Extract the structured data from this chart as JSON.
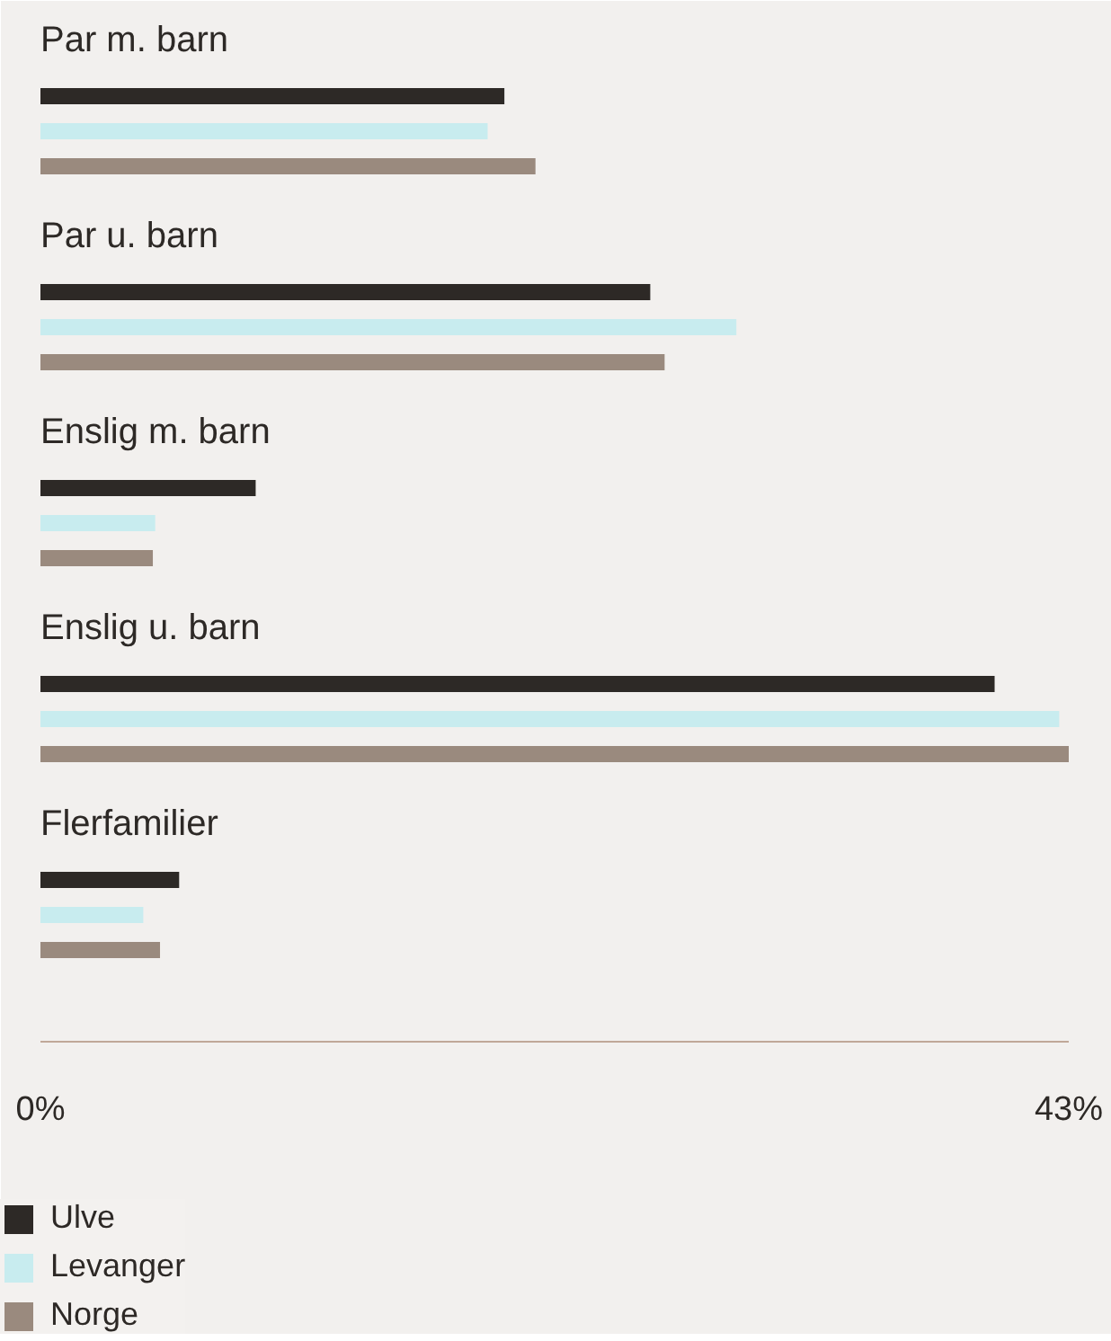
{
  "chart_data": {
    "type": "bar",
    "orientation": "horizontal",
    "categories": [
      "Par m. barn",
      "Par u. barn",
      "Enslig m. barn",
      "Enslig u. barn",
      "Flerfamilier"
    ],
    "series": [
      {
        "name": "Ulve",
        "color": "#2d2926",
        "values": [
          19.4,
          25.5,
          9.0,
          39.9,
          5.8
        ]
      },
      {
        "name": "Levanger",
        "color": "#c8ecef",
        "values": [
          18.7,
          29.1,
          4.8,
          42.6,
          4.3
        ]
      },
      {
        "name": "Norge",
        "color": "#9a8a7e",
        "values": [
          20.7,
          26.1,
          4.7,
          43.0,
          5.0
        ]
      }
    ],
    "xlim": [
      0,
      43
    ],
    "xticks": [
      {
        "value": 0,
        "label": "0%"
      },
      {
        "value": 43,
        "label": "43%"
      }
    ],
    "grid": false,
    "legend": "bottom"
  }
}
